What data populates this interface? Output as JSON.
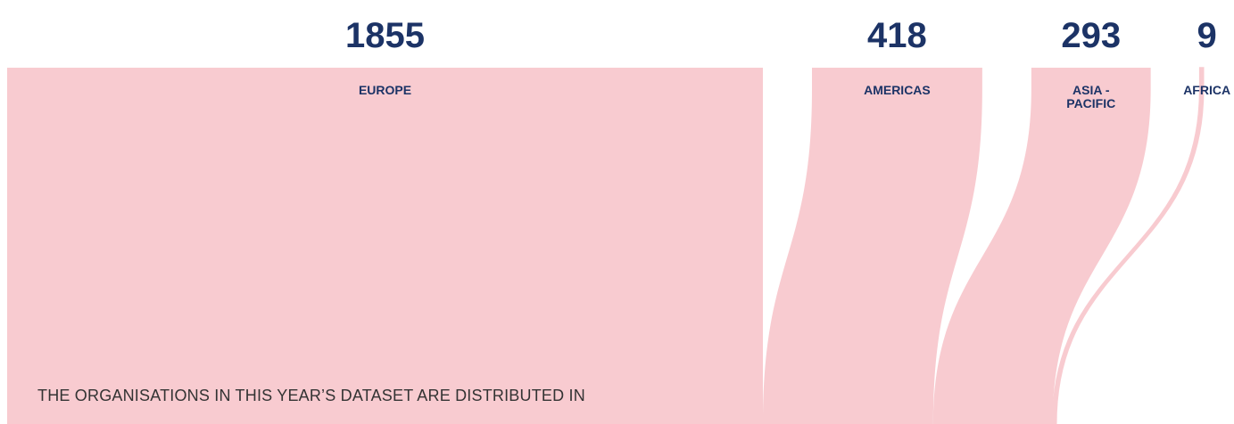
{
  "chart_data": {
    "type": "sankey",
    "categories": [
      "EUROPE",
      "AMERICAS",
      "ASIA - PACIFIC",
      "AFRICA"
    ],
    "values": [
      1855,
      418,
      293,
      9
    ],
    "color": "#f8cbd0",
    "caption": "THE ORGANISATIONS IN THIS YEAR’S DATASET ARE DISTRIBUTED IN"
  }
}
